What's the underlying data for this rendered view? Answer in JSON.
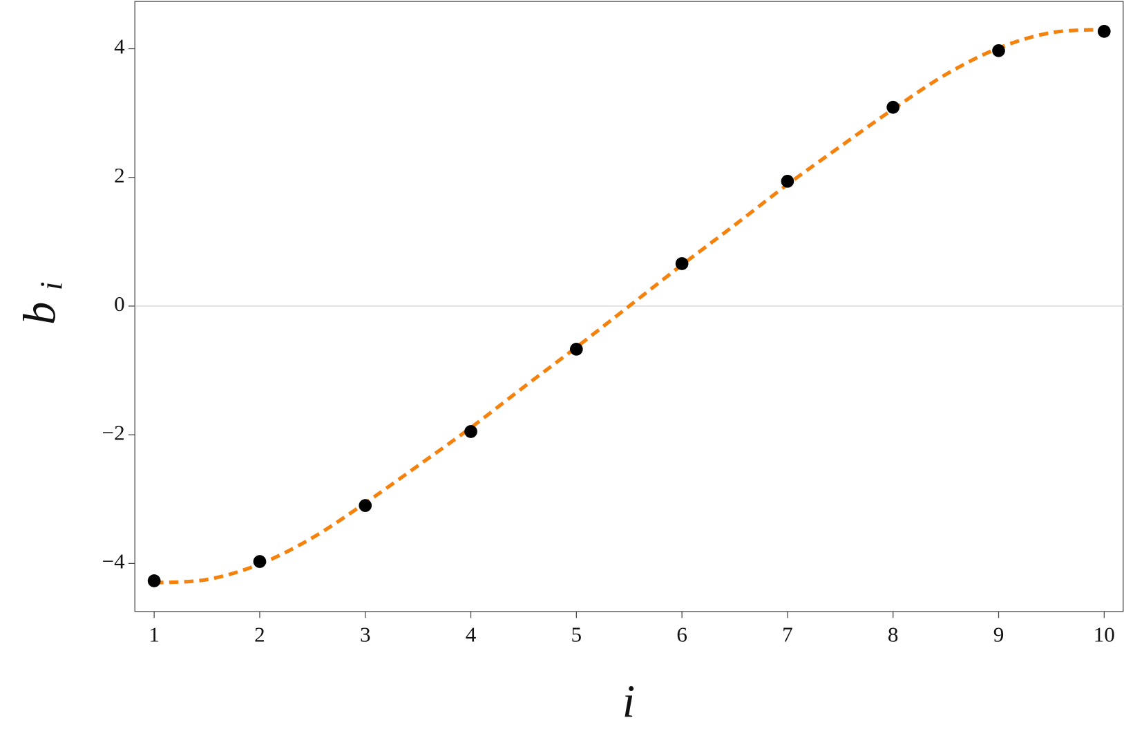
{
  "chart_data": {
    "type": "scatter",
    "xlabel": "i",
    "ylabel": "b",
    "ylabel_subscript": "i",
    "x": [
      1,
      2,
      3,
      4,
      5,
      6,
      7,
      8,
      9,
      10
    ],
    "series": [
      {
        "color": "#000000",
        "values": [
          -4.27,
          -3.97,
          -3.1,
          -1.95,
          -0.67,
          0.66,
          1.94,
          3.09,
          3.97,
          4.27
        ]
      }
    ],
    "fit": {
      "color": "#f5820d",
      "x": [
        1,
        1.5,
        2,
        2.5,
        3,
        3.5,
        4,
        4.5,
        5,
        5.5,
        6,
        6.5,
        7,
        7.5,
        8,
        8.5,
        9,
        9.5,
        10
      ],
      "values": [
        -4.3,
        -4.25,
        -4.01,
        -3.6,
        -3.06,
        -2.48,
        -1.89,
        -1.26,
        -0.64,
        0,
        0.64,
        1.26,
        1.89,
        2.48,
        3.06,
        3.6,
        4.01,
        4.25,
        4.3
      ]
    },
    "xlim": [
      0.817,
      10.18
    ],
    "ylim": [
      -4.747,
      4.735
    ],
    "xticks": [
      1,
      2,
      3,
      4,
      5,
      6,
      7,
      8,
      9,
      10
    ],
    "yticks": [
      {
        "value": -4,
        "label": "−4"
      },
      {
        "value": -2,
        "label": "−2"
      },
      0,
      2,
      4
    ],
    "zero_line": true
  }
}
